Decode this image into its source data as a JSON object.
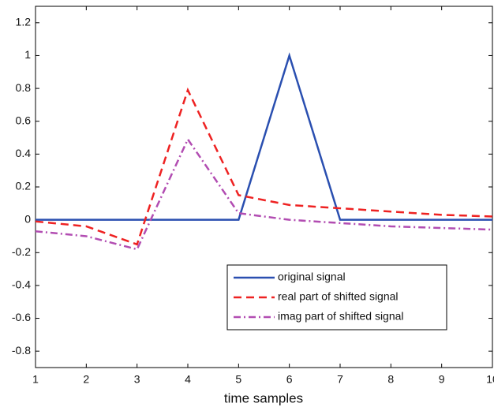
{
  "chart_data": {
    "type": "line",
    "xlabel": "time samples",
    "x": [
      1,
      2,
      3,
      4,
      5,
      6,
      7,
      8,
      9,
      10
    ],
    "series": [
      {
        "name": "original signal",
        "color": "#2a4fb0",
        "dash": "solid",
        "values": [
          0,
          0,
          0,
          0,
          0,
          1,
          0,
          0,
          0,
          0
        ]
      },
      {
        "name": "real part of shifted signal",
        "color": "#ee2222",
        "dash": "dashed",
        "values": [
          -0.01,
          -0.04,
          -0.15,
          0.79,
          0.15,
          0.09,
          0.07,
          0.05,
          0.03,
          0.02
        ]
      },
      {
        "name": "imag part of shifted signal",
        "color": "#b24db2",
        "dash": "dashdot",
        "values": [
          -0.07,
          -0.1,
          -0.18,
          0.49,
          0.04,
          0.0,
          -0.02,
          -0.04,
          -0.05,
          -0.06
        ]
      }
    ],
    "xlim": [
      1,
      10
    ],
    "xticks": [
      1,
      2,
      3,
      4,
      5,
      6,
      7,
      8,
      9,
      10
    ],
    "ylim": [
      -0.9,
      1.3
    ],
    "yticks": [
      -0.8,
      -0.6,
      -0.4,
      -0.2,
      0,
      0.2,
      0.4,
      0.6,
      0.8,
      1,
      1.2
    ],
    "grid": false,
    "legend": "lower right"
  }
}
